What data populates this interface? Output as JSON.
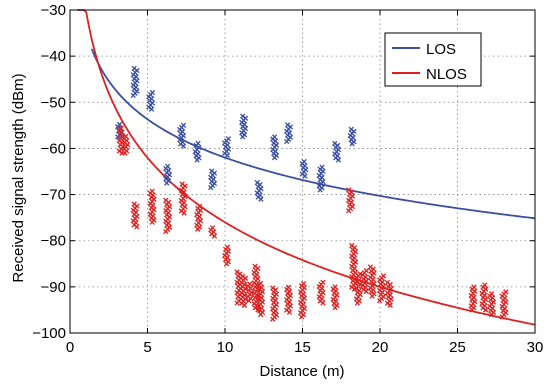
{
  "chart_data": {
    "type": "scatter",
    "xlabel": "Distance (m)",
    "ylabel": "Received signal strength (dBm)",
    "xlim": [
      0,
      30
    ],
    "ylim": [
      -100,
      -30
    ],
    "xticks": [
      0,
      5,
      10,
      15,
      20,
      25,
      30
    ],
    "yticks": [
      -100,
      -90,
      -80,
      -70,
      -60,
      -50,
      -40,
      -30
    ],
    "xtick_labels": [
      "0",
      "5",
      "10",
      "15",
      "20",
      "25",
      "30"
    ],
    "ytick_labels": [
      "−100",
      "−90",
      "−80",
      "−70",
      "−60",
      "−50",
      "−40",
      "−30"
    ],
    "grid": true,
    "grid_style": "dotted",
    "legend_position": "top-right",
    "colors": {
      "LOS": "#3a4fa3",
      "NLOS": "#e02020"
    },
    "lines": [
      {
        "name": "LOS",
        "color": "#3a4fa3",
        "model": "log-distance",
        "a": -34.4,
        "b": 11.98,
        "x_start": 1.4,
        "x_end": 30
      },
      {
        "name": "NLOS",
        "color": "#e02020",
        "model": "log-distance",
        "a": -29.5,
        "b": 20.2,
        "x_start": 0.46,
        "x_end": 30
      }
    ],
    "scatter_clusters": [
      {
        "series": "LOS",
        "x": 4.2,
        "y_min": -48.5,
        "y_max": -42.5
      },
      {
        "series": "LOS",
        "x": 5.2,
        "y_min": -51.5,
        "y_max": -47.5
      },
      {
        "series": "LOS",
        "x": 6.3,
        "y_min": -67.5,
        "y_max": -63.5
      },
      {
        "series": "LOS",
        "x": 7.2,
        "y_min": -59.5,
        "y_max": -55.0
      },
      {
        "series": "LOS",
        "x": 8.2,
        "y_min": -62.5,
        "y_max": -58.5
      },
      {
        "series": "LOS",
        "x": 9.2,
        "y_min": -68.5,
        "y_max": -64.5
      },
      {
        "series": "LOS",
        "x": 10.1,
        "y_min": -61.5,
        "y_max": -57.5
      },
      {
        "series": "LOS",
        "x": 11.2,
        "y_min": -57.5,
        "y_max": -53.0
      },
      {
        "series": "LOS",
        "x": 12.2,
        "y_min": -71.0,
        "y_max": -67.0
      },
      {
        "series": "LOS",
        "x": 13.2,
        "y_min": -62.0,
        "y_max": -57.5
      },
      {
        "series": "LOS",
        "x": 14.1,
        "y_min": -58.5,
        "y_max": -54.5
      },
      {
        "series": "LOS",
        "x": 15.1,
        "y_min": -66.0,
        "y_max": -62.5
      },
      {
        "series": "LOS",
        "x": 16.2,
        "y_min": -69.0,
        "y_max": -64.0
      },
      {
        "series": "LOS",
        "x": 17.2,
        "y_min": -62.5,
        "y_max": -58.5
      },
      {
        "series": "LOS",
        "x": 18.2,
        "y_min": -59.0,
        "y_max": -55.5
      },
      {
        "series": "LOS",
        "x": 3.2,
        "y_min": -57.5,
        "y_max": -54.5
      },
      {
        "series": "NLOS",
        "x": 3.3,
        "y_min": -61.0,
        "y_max": -55.5
      },
      {
        "series": "NLOS",
        "x": 3.6,
        "y_min": -61.0,
        "y_max": -57.0
      },
      {
        "series": "NLOS",
        "x": 4.2,
        "y_min": -77.0,
        "y_max": -72.0
      },
      {
        "series": "NLOS",
        "x": 5.3,
        "y_min": -76.0,
        "y_max": -69.0
      },
      {
        "series": "NLOS",
        "x": 6.3,
        "y_min": -78.0,
        "y_max": -71.0
      },
      {
        "series": "NLOS",
        "x": 7.3,
        "y_min": -74.0,
        "y_max": -67.5
      },
      {
        "series": "NLOS",
        "x": 8.3,
        "y_min": -77.5,
        "y_max": -72.5
      },
      {
        "series": "NLOS",
        "x": 9.2,
        "y_min": -79.0,
        "y_max": -77.0
      },
      {
        "series": "NLOS",
        "x": 10.1,
        "y_min": -85.0,
        "y_max": -81.0
      },
      {
        "series": "NLOS",
        "x": 10.9,
        "y_min": -93.5,
        "y_max": -86.5
      },
      {
        "series": "NLOS",
        "x": 11.2,
        "y_min": -94.0,
        "y_max": -87.5
      },
      {
        "series": "NLOS",
        "x": 11.6,
        "y_min": -93.0,
        "y_max": -89.0
      },
      {
        "series": "NLOS",
        "x": 12.0,
        "y_min": -95.0,
        "y_max": -85.5
      },
      {
        "series": "NLOS",
        "x": 12.3,
        "y_min": -96.0,
        "y_max": -89.0
      },
      {
        "series": "NLOS",
        "x": 13.2,
        "y_min": -97.0,
        "y_max": -90.0
      },
      {
        "series": "NLOS",
        "x": 14.1,
        "y_min": -95.5,
        "y_max": -90.0
      },
      {
        "series": "NLOS",
        "x": 15.0,
        "y_min": -96.5,
        "y_max": -89.0
      },
      {
        "series": "NLOS",
        "x": 16.2,
        "y_min": -93.5,
        "y_max": -89.0
      },
      {
        "series": "NLOS",
        "x": 17.1,
        "y_min": -94.5,
        "y_max": -90.0
      },
      {
        "series": "NLOS",
        "x": 18.1,
        "y_min": -73.5,
        "y_max": -69.0
      },
      {
        "series": "NLOS",
        "x": 18.3,
        "y_min": -90.5,
        "y_max": -81.0
      },
      {
        "series": "NLOS",
        "x": 18.6,
        "y_min": -93.5,
        "y_max": -87.0
      },
      {
        "series": "NLOS",
        "x": 19.0,
        "y_min": -91.0,
        "y_max": -86.5
      },
      {
        "series": "NLOS",
        "x": 19.5,
        "y_min": -92.0,
        "y_max": -85.5
      },
      {
        "series": "NLOS",
        "x": 20.1,
        "y_min": -93.0,
        "y_max": -87.5
      },
      {
        "series": "NLOS",
        "x": 20.6,
        "y_min": -94.0,
        "y_max": -89.0
      },
      {
        "series": "NLOS",
        "x": 26.0,
        "y_min": -95.0,
        "y_max": -90.0
      },
      {
        "series": "NLOS",
        "x": 26.7,
        "y_min": -95.0,
        "y_max": -89.5
      },
      {
        "series": "NLOS",
        "x": 27.2,
        "y_min": -96.0,
        "y_max": -91.5
      },
      {
        "series": "NLOS",
        "x": 28.0,
        "y_min": -96.5,
        "y_max": -91.0
      }
    ]
  },
  "legend": {
    "items": [
      {
        "label": "LOS",
        "color": "#3a4fa3"
      },
      {
        "label": "NLOS",
        "color": "#e02020"
      }
    ]
  }
}
